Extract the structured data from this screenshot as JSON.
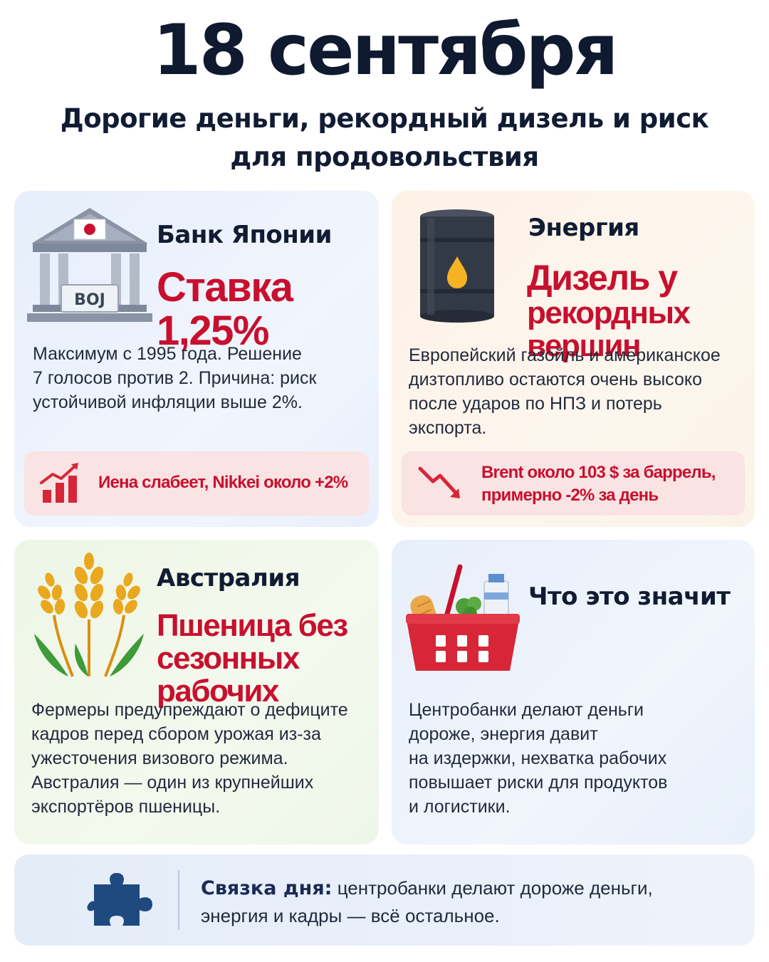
{
  "header": {
    "title": "18 сентября",
    "subtitle_line1": "Дорогие деньги, рекордный дизель и риск",
    "subtitle_line2": "для продовольствия"
  },
  "boj": {
    "heading": "Банк Японии",
    "highlight": "Ставка 1,25%",
    "building_sign": "BOJ",
    "body": [
      "Максимум с 1995 года. Решение",
      "7 голосов против 2. Причина: риск",
      "устойчивой инфляции выше 2%."
    ],
    "note": "Иена слабеет, Nikkei около +2%",
    "icon": "bank-building-icon",
    "note_icon": "rising-chart-icon"
  },
  "energy": {
    "heading": "Энергия",
    "highlight_line1": "Дизель у",
    "highlight_line2": "рекордных вершин",
    "body": [
      "Европейский газойль и американское",
      "дизтопливо остаются очень высоко",
      "после ударов по НПЗ и потерь",
      "экспорта."
    ],
    "note_line1": "Brent около 103 $ за баррель,",
    "note_line2": "примерно -2% за день",
    "icon": "oil-barrel-icon",
    "note_icon": "falling-arrow-icon"
  },
  "australia": {
    "heading": "Австралия",
    "highlight_line1": "Пшеница без",
    "highlight_line2": "сезонных рабочих",
    "body": [
      "Фермеры предупреждают о дефиците",
      "кадров перед сбором урожая из-за",
      "ужесточения визового режима.",
      "Австралия — один из крупнейших",
      "экспортёров пшеницы."
    ],
    "icon": "wheat-icon"
  },
  "meaning": {
    "heading": "Что это значит",
    "body": [
      "Центробанки делают деньги",
      "дороже, энергия давит",
      "на издержки, нехватка рабочих",
      "повышает риски для продуктов",
      "и логистики."
    ],
    "icon": "grocery-basket-icon"
  },
  "bottom": {
    "label": "Связка дня:",
    "text_line1": " центробанки делают дороже деньги,",
    "text_line2": "энергия и кадры — всё остальное.",
    "icon": "puzzle-piece-icon"
  },
  "colors": {
    "accent_red": "#c8102e",
    "title_navy": "#0f1a31",
    "puzzle_blue": "#1f4a80"
  }
}
